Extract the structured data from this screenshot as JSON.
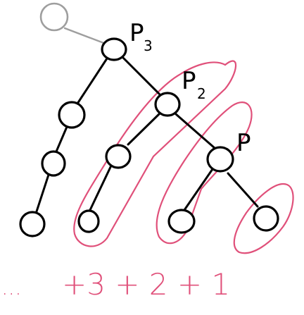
{
  "labels": {
    "p3_main": "P",
    "p3_sub": "3",
    "p2_main": "P",
    "p2_sub": "2",
    "p_main": "P"
  },
  "sum": {
    "dots": "...",
    "text": "+3 + 2 + 1"
  },
  "colors": {
    "ink": "#000000",
    "highlight": "#e0507a",
    "faded": "#9e9e9e"
  },
  "icons": {
    "parent_node": "gray-circle",
    "tree_node": "black-circle",
    "group_outline": "pink-loop"
  }
}
